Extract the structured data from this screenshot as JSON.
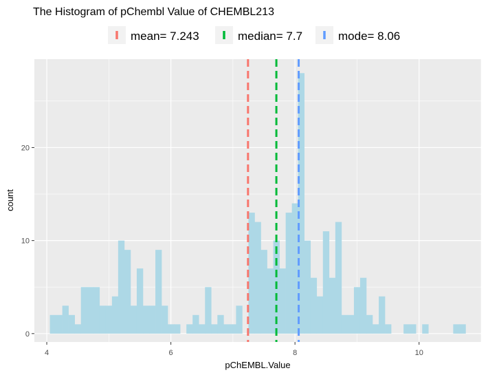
{
  "chart_data": {
    "type": "bar",
    "title": "The Histogram of pChembl Value of CHEMBL213",
    "xlabel": "pChEMBL.Value",
    "ylabel": "count",
    "xlim": [
      3.8,
      11.0
    ],
    "ylim": [
      -0.9,
      29.5
    ],
    "x_ticks": [
      4,
      6,
      8,
      10
    ],
    "x_tick_labels": [
      "4",
      "6",
      "8",
      "10"
    ],
    "y_ticks": [
      0,
      10,
      20
    ],
    "y_tick_labels": [
      "0",
      "10",
      "20"
    ],
    "grid": true,
    "bin_width": 0.1,
    "bar_color": "#add8e6",
    "bins": [
      {
        "x": 4.1,
        "count": 2
      },
      {
        "x": 4.2,
        "count": 2
      },
      {
        "x": 4.3,
        "count": 3
      },
      {
        "x": 4.4,
        "count": 2
      },
      {
        "x": 4.5,
        "count": 1
      },
      {
        "x": 4.6,
        "count": 5
      },
      {
        "x": 4.7,
        "count": 5
      },
      {
        "x": 4.8,
        "count": 5
      },
      {
        "x": 4.9,
        "count": 3
      },
      {
        "x": 5.0,
        "count": 3
      },
      {
        "x": 5.1,
        "count": 4
      },
      {
        "x": 5.2,
        "count": 10
      },
      {
        "x": 5.3,
        "count": 9
      },
      {
        "x": 5.4,
        "count": 3
      },
      {
        "x": 5.5,
        "count": 7
      },
      {
        "x": 5.6,
        "count": 3
      },
      {
        "x": 5.7,
        "count": 3
      },
      {
        "x": 5.8,
        "count": 9
      },
      {
        "x": 5.9,
        "count": 3
      },
      {
        "x": 6.0,
        "count": 1
      },
      {
        "x": 6.1,
        "count": 1
      },
      {
        "x": 6.2,
        "count": 0
      },
      {
        "x": 6.3,
        "count": 1
      },
      {
        "x": 6.4,
        "count": 2
      },
      {
        "x": 6.5,
        "count": 1
      },
      {
        "x": 6.6,
        "count": 5
      },
      {
        "x": 6.7,
        "count": 1
      },
      {
        "x": 6.8,
        "count": 2
      },
      {
        "x": 6.9,
        "count": 1
      },
      {
        "x": 7.0,
        "count": 1
      },
      {
        "x": 7.1,
        "count": 3
      },
      {
        "x": 7.2,
        "count": 0
      },
      {
        "x": 7.3,
        "count": 13
      },
      {
        "x": 7.4,
        "count": 12
      },
      {
        "x": 7.5,
        "count": 9
      },
      {
        "x": 7.6,
        "count": 7
      },
      {
        "x": 7.7,
        "count": 10
      },
      {
        "x": 7.8,
        "count": 7
      },
      {
        "x": 7.9,
        "count": 13
      },
      {
        "x": 8.0,
        "count": 14
      },
      {
        "x": 8.1,
        "count": 28
      },
      {
        "x": 8.2,
        "count": 10
      },
      {
        "x": 8.3,
        "count": 6
      },
      {
        "x": 8.4,
        "count": 4
      },
      {
        "x": 8.5,
        "count": 11
      },
      {
        "x": 8.6,
        "count": 6
      },
      {
        "x": 8.7,
        "count": 12
      },
      {
        "x": 8.8,
        "count": 2
      },
      {
        "x": 8.9,
        "count": 2
      },
      {
        "x": 9.0,
        "count": 5
      },
      {
        "x": 9.1,
        "count": 6
      },
      {
        "x": 9.2,
        "count": 2
      },
      {
        "x": 9.3,
        "count": 1
      },
      {
        "x": 9.4,
        "count": 4
      },
      {
        "x": 9.5,
        "count": 1
      },
      {
        "x": 9.6,
        "count": 0
      },
      {
        "x": 9.7,
        "count": 0
      },
      {
        "x": 9.8,
        "count": 1
      },
      {
        "x": 9.9,
        "count": 1
      },
      {
        "x": 10.0,
        "count": 0
      },
      {
        "x": 10.1,
        "count": 1
      },
      {
        "x": 10.2,
        "count": 0
      },
      {
        "x": 10.3,
        "count": 0
      },
      {
        "x": 10.4,
        "count": 0
      },
      {
        "x": 10.5,
        "count": 0
      },
      {
        "x": 10.6,
        "count": 1
      },
      {
        "x": 10.7,
        "count": 1
      }
    ],
    "vlines": [
      {
        "label": "mean= 7.243",
        "x": 7.243,
        "color": "#f8766d",
        "style": "dashed"
      },
      {
        "label": "median= 7.7",
        "x": 7.7,
        "color": "#00ba38",
        "style": "dashed"
      },
      {
        "label": "mode= 8.06",
        "x": 8.06,
        "color": "#619cff",
        "style": "dashed"
      }
    ],
    "legend_position": "top",
    "panel_background": "#ebebeb",
    "grid_color": "#ffffff"
  }
}
